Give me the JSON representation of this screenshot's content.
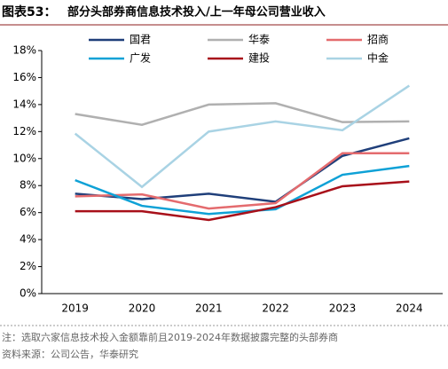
{
  "chart_data": {
    "type": "line",
    "figure_label": "图表53：",
    "title": "部分头部券商信息技术投入/上一年母公司营业收入",
    "categories": [
      "2019",
      "2020",
      "2021",
      "2022",
      "2023",
      "2024"
    ],
    "series": [
      {
        "name": "国君",
        "color": "#1f3f7a",
        "values": [
          7.4,
          7.0,
          7.4,
          6.8,
          10.2,
          11.5
        ]
      },
      {
        "name": "华泰",
        "color": "#b0b0b0",
        "values": [
          13.3,
          12.5,
          14.0,
          14.1,
          12.7,
          12.75
        ]
      },
      {
        "name": "招商",
        "color": "#e46b6e",
        "values": [
          7.2,
          7.35,
          6.3,
          6.7,
          10.4,
          10.4
        ]
      },
      {
        "name": "广发",
        "color": "#0ea1d6",
        "values": [
          8.4,
          6.5,
          5.9,
          6.25,
          8.8,
          9.45
        ]
      },
      {
        "name": "建投",
        "color": "#a8101a",
        "values": [
          6.1,
          6.1,
          5.45,
          6.4,
          7.95,
          8.3
        ]
      },
      {
        "name": "中金",
        "color": "#a9d3e4",
        "values": [
          11.85,
          7.9,
          12.0,
          12.75,
          12.1,
          15.4
        ]
      }
    ],
    "ylim": [
      0,
      18
    ],
    "yticks": [
      {
        "value": 0,
        "label": "0%"
      },
      {
        "value": 2,
        "label": "2%"
      },
      {
        "value": 4,
        "label": "4%"
      },
      {
        "value": 6,
        "label": "6%"
      },
      {
        "value": 8,
        "label": "8%"
      },
      {
        "value": 10,
        "label": "10%"
      },
      {
        "value": 12,
        "label": "12%"
      },
      {
        "value": 14,
        "label": "14%"
      },
      {
        "value": 16,
        "label": "16%"
      },
      {
        "value": 18,
        "label": "18%"
      }
    ],
    "notes": [
      "注：选取六家信息技术投入金额靠前且2019-2024年数据披露完整的头部券商",
      "资料来源：公司公告，华泰研究"
    ]
  }
}
